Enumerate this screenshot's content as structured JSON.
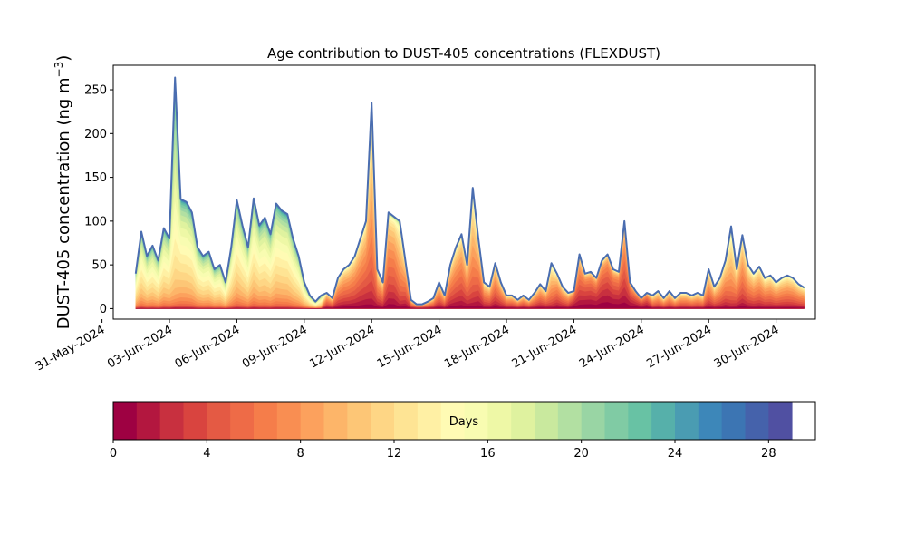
{
  "chart_data": {
    "type": "area",
    "title": "Age contribution to DUST-405 concentrations (FLEXDUST)",
    "ylabel": "DUST-405 concentration (ng m",
    "ylabel_unit_sup": "−3",
    "ylabel_close": ")",
    "xlabel": "",
    "ylim": [
      -12,
      278
    ],
    "xlim": [
      "2024-05-31T12:00",
      "2024-07-01T18:00"
    ],
    "grid": false,
    "xticks": [
      "31-May-2024",
      "03-Jun-2024",
      "06-Jun-2024",
      "09-Jun-2024",
      "12-Jun-2024",
      "15-Jun-2024",
      "18-Jun-2024",
      "21-Jun-2024",
      "24-Jun-2024",
      "27-Jun-2024",
      "30-Jun-2024"
    ],
    "xtick_dates": [
      "2024-05-31",
      "2024-06-03",
      "2024-06-06",
      "2024-06-09",
      "2024-06-12",
      "2024-06-15",
      "2024-06-18",
      "2024-06-21",
      "2024-06-24",
      "2024-06-27",
      "2024-06-30"
    ],
    "yticks": [
      0,
      50,
      100,
      150,
      200,
      250
    ],
    "total": [
      [
        "2024-06-01T12:00",
        40
      ],
      [
        "2024-06-01T18:00",
        88
      ],
      [
        "2024-06-02T00:00",
        60
      ],
      [
        "2024-06-02T06:00",
        72
      ],
      [
        "2024-06-02T12:00",
        55
      ],
      [
        "2024-06-02T18:00",
        92
      ],
      [
        "2024-06-03T00:00",
        80
      ],
      [
        "2024-06-03T06:00",
        264
      ],
      [
        "2024-06-03T12:00",
        125
      ],
      [
        "2024-06-03T18:00",
        122
      ],
      [
        "2024-06-04T00:00",
        110
      ],
      [
        "2024-06-04T06:00",
        70
      ],
      [
        "2024-06-04T12:00",
        60
      ],
      [
        "2024-06-04T18:00",
        65
      ],
      [
        "2024-06-05T00:00",
        45
      ],
      [
        "2024-06-05T06:00",
        50
      ],
      [
        "2024-06-05T12:00",
        30
      ],
      [
        "2024-06-05T18:00",
        70
      ],
      [
        "2024-06-06T00:00",
        124
      ],
      [
        "2024-06-06T06:00",
        95
      ],
      [
        "2024-06-06T12:00",
        70
      ],
      [
        "2024-06-06T18:00",
        126
      ],
      [
        "2024-06-07T00:00",
        95
      ],
      [
        "2024-06-07T06:00",
        104
      ],
      [
        "2024-06-07T12:00",
        85
      ],
      [
        "2024-06-07T18:00",
        120
      ],
      [
        "2024-06-08T00:00",
        112
      ],
      [
        "2024-06-08T06:00",
        108
      ],
      [
        "2024-06-08T12:00",
        80
      ],
      [
        "2024-06-08T18:00",
        60
      ],
      [
        "2024-06-09T00:00",
        30
      ],
      [
        "2024-06-09T06:00",
        15
      ],
      [
        "2024-06-09T12:00",
        8
      ],
      [
        "2024-06-09T18:00",
        15
      ],
      [
        "2024-06-10T00:00",
        18
      ],
      [
        "2024-06-10T06:00",
        12
      ],
      [
        "2024-06-10T12:00",
        35
      ],
      [
        "2024-06-10T18:00",
        45
      ],
      [
        "2024-06-11T00:00",
        50
      ],
      [
        "2024-06-11T06:00",
        60
      ],
      [
        "2024-06-11T12:00",
        80
      ],
      [
        "2024-06-11T18:00",
        100
      ],
      [
        "2024-06-12T00:00",
        235
      ],
      [
        "2024-06-12T06:00",
        45
      ],
      [
        "2024-06-12T12:00",
        30
      ],
      [
        "2024-06-12T18:00",
        110
      ],
      [
        "2024-06-13T00:00",
        105
      ],
      [
        "2024-06-13T06:00",
        100
      ],
      [
        "2024-06-13T12:00",
        55
      ],
      [
        "2024-06-13T18:00",
        10
      ],
      [
        "2024-06-14T00:00",
        5
      ],
      [
        "2024-06-14T06:00",
        5
      ],
      [
        "2024-06-14T12:00",
        8
      ],
      [
        "2024-06-14T18:00",
        12
      ],
      [
        "2024-06-15T00:00",
        30
      ],
      [
        "2024-06-15T06:00",
        15
      ],
      [
        "2024-06-15T12:00",
        50
      ],
      [
        "2024-06-15T18:00",
        70
      ],
      [
        "2024-06-16T00:00",
        85
      ],
      [
        "2024-06-16T06:00",
        50
      ],
      [
        "2024-06-16T12:00",
        138
      ],
      [
        "2024-06-16T18:00",
        80
      ],
      [
        "2024-06-17T00:00",
        30
      ],
      [
        "2024-06-17T06:00",
        25
      ],
      [
        "2024-06-17T12:00",
        52
      ],
      [
        "2024-06-17T18:00",
        30
      ],
      [
        "2024-06-18T00:00",
        15
      ],
      [
        "2024-06-18T06:00",
        15
      ],
      [
        "2024-06-18T12:00",
        10
      ],
      [
        "2024-06-18T18:00",
        15
      ],
      [
        "2024-06-19T00:00",
        10
      ],
      [
        "2024-06-19T06:00",
        18
      ],
      [
        "2024-06-19T12:00",
        28
      ],
      [
        "2024-06-19T18:00",
        20
      ],
      [
        "2024-06-20T00:00",
        52
      ],
      [
        "2024-06-20T06:00",
        40
      ],
      [
        "2024-06-20T12:00",
        25
      ],
      [
        "2024-06-20T18:00",
        18
      ],
      [
        "2024-06-21T00:00",
        20
      ],
      [
        "2024-06-21T06:00",
        62
      ],
      [
        "2024-06-21T12:00",
        40
      ],
      [
        "2024-06-21T18:00",
        42
      ],
      [
        "2024-06-22T00:00",
        35
      ],
      [
        "2024-06-22T06:00",
        55
      ],
      [
        "2024-06-22T12:00",
        62
      ],
      [
        "2024-06-22T18:00",
        45
      ],
      [
        "2024-06-23T00:00",
        42
      ],
      [
        "2024-06-23T06:00",
        100
      ],
      [
        "2024-06-23T12:00",
        30
      ],
      [
        "2024-06-23T18:00",
        20
      ],
      [
        "2024-06-24T00:00",
        12
      ],
      [
        "2024-06-24T06:00",
        18
      ],
      [
        "2024-06-24T12:00",
        15
      ],
      [
        "2024-06-24T18:00",
        20
      ],
      [
        "2024-06-25T00:00",
        12
      ],
      [
        "2024-06-25T06:00",
        20
      ],
      [
        "2024-06-25T12:00",
        12
      ],
      [
        "2024-06-25T18:00",
        18
      ],
      [
        "2024-06-26T00:00",
        18
      ],
      [
        "2024-06-26T06:00",
        15
      ],
      [
        "2024-06-26T12:00",
        18
      ],
      [
        "2024-06-26T18:00",
        15
      ],
      [
        "2024-06-27T00:00",
        45
      ],
      [
        "2024-06-27T06:00",
        25
      ],
      [
        "2024-06-27T12:00",
        35
      ],
      [
        "2024-06-27T18:00",
        55
      ],
      [
        "2024-06-28T00:00",
        94
      ],
      [
        "2024-06-28T06:00",
        45
      ],
      [
        "2024-06-28T12:00",
        84
      ],
      [
        "2024-06-28T18:00",
        50
      ],
      [
        "2024-06-29T00:00",
        40
      ],
      [
        "2024-06-29T06:00",
        48
      ],
      [
        "2024-06-29T12:00",
        35
      ],
      [
        "2024-06-29T18:00",
        38
      ],
      [
        "2024-06-30T00:00",
        30
      ],
      [
        "2024-06-30T06:00",
        35
      ],
      [
        "2024-06-30T12:00",
        38
      ],
      [
        "2024-06-30T18:00",
        35
      ],
      [
        "2024-07-01T00:00",
        28
      ],
      [
        "2024-07-01T06:00",
        24
      ]
    ],
    "colorbar": {
      "label": "Days",
      "min": 0,
      "max": 30,
      "ticks": [
        0,
        4,
        8,
        12,
        16,
        20,
        24,
        28
      ],
      "colors": [
        "#9e0142",
        "#b3173f",
        "#c8303f",
        "#d9443f",
        "#e45a44",
        "#ee6b47",
        "#f57d4a",
        "#f98e52",
        "#fca15d",
        "#fdb569",
        "#fdc676",
        "#fed685",
        "#fee494",
        "#fff0a4",
        "#fffbb4",
        "#f8fcb1",
        "#eef8a6",
        "#dff29f",
        "#c9e99e",
        "#b2e0a2",
        "#99d5a4",
        "#80cba4",
        "#68c2a4",
        "#56b0aa",
        "#4a9cb2",
        "#3d87b9",
        "#3c75b3",
        "#4562ab",
        "#5050a2"
      ]
    },
    "layer_ages_days": [
      0,
      1,
      2,
      3,
      4,
      5,
      6,
      7,
      8,
      9,
      10,
      11,
      12,
      13,
      14,
      15,
      16,
      17,
      18,
      19,
      20,
      21,
      22,
      23,
      24,
      25,
      26,
      27,
      28
    ],
    "outline_color": "#4a6db0"
  }
}
